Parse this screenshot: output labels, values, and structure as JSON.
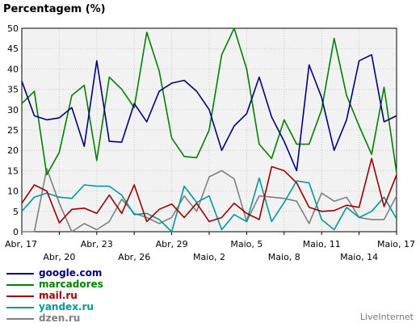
{
  "chart_data": {
    "type": "line",
    "title": "Percentagem (%)",
    "xlabel": "",
    "ylabel": "",
    "ylim": [
      0,
      50
    ],
    "y_ticks": [
      0,
      5,
      10,
      15,
      20,
      25,
      30,
      35,
      40,
      45,
      50
    ],
    "grid": true,
    "legend_position": "bottom-left",
    "x": [
      "Abr, 17",
      "Abr, 18",
      "Abr, 19",
      "Abr, 20",
      "Abr, 21",
      "Abr, 22",
      "Abr, 23",
      "Abr, 24",
      "Abr, 25",
      "Abr, 26",
      "Abr, 27",
      "Abr, 28",
      "Abr, 29",
      "Abr, 30",
      "Maio, 1",
      "Maio, 2",
      "Maio, 3",
      "Maio, 4",
      "Maio, 5",
      "Maio, 6",
      "Maio, 7",
      "Maio, 8",
      "Maio, 9",
      "Maio, 10",
      "Maio, 11",
      "Maio, 12",
      "Maio, 13",
      "Maio, 14",
      "Maio, 15",
      "Maio, 16",
      "Maio, 17"
    ],
    "x_tick_labels_top": [
      {
        "index": 0,
        "label": "Abr, 17"
      },
      {
        "index": 6,
        "label": "Abr, 23"
      },
      {
        "index": 12,
        "label": "Abr, 29"
      },
      {
        "index": 18,
        "label": "Maio, 5"
      },
      {
        "index": 24,
        "label": "Maio, 11"
      },
      {
        "index": 30,
        "label": "Maio, 17"
      }
    ],
    "x_tick_labels_bottom": [
      {
        "index": 3,
        "label": "Abr, 20"
      },
      {
        "index": 9,
        "label": "Abr, 26"
      },
      {
        "index": 15,
        "label": "Maio, 2"
      },
      {
        "index": 21,
        "label": "Maio, 8"
      },
      {
        "index": 27,
        "label": "Maio, 14"
      }
    ],
    "series": [
      {
        "name": "google.com",
        "color": "#00007f",
        "values": [
          37,
          28.5,
          27.5,
          28,
          30.5,
          21,
          42,
          22.2,
          22,
          31.5,
          27,
          34.5,
          36.5,
          37.2,
          34.5,
          30,
          20,
          26,
          29,
          38,
          28.2,
          22.2,
          15,
          41,
          33,
          20,
          27.5,
          42,
          43.5,
          27,
          28.5
        ]
      },
      {
        "name": "marcadores",
        "color": "#008000",
        "values": [
          31.5,
          34.5,
          14,
          19.5,
          33.5,
          36,
          17.5,
          38,
          35,
          30.5,
          49,
          39.5,
          23,
          18.5,
          18.2,
          25,
          43.5,
          50,
          40,
          21.5,
          18,
          27.5,
          21.5,
          21.5,
          30,
          47.5,
          33.5,
          26,
          19,
          35.5,
          14.5
        ]
      },
      {
        "name": "mail.ru",
        "color": "#990000",
        "values": [
          7,
          11.5,
          10,
          2.2,
          5.5,
          5.8,
          4.5,
          9,
          4.5,
          11.5,
          2.5,
          5.5,
          6.8,
          3.5,
          7,
          2.5,
          3.5,
          7,
          4.5,
          3,
          16,
          15,
          12,
          6,
          5,
          5.2,
          6.5,
          6,
          18,
          6.2,
          14
        ]
      },
      {
        "name": "yandex.ru",
        "color": "#009999",
        "values": [
          5,
          8.5,
          9.5,
          8.5,
          8.2,
          11.5,
          11.2,
          11.2,
          9,
          4.2,
          4.5,
          3,
          0,
          11.2,
          7.2,
          8.8,
          0.5,
          4.2,
          2.5,
          13.2,
          2.5,
          7.2,
          12.5,
          12,
          3,
          0.5,
          6,
          3.5,
          5,
          8.5,
          3.2
        ]
      },
      {
        "name": "dzen.ru",
        "color": "#808080",
        "values": [
          0,
          0,
          15.5,
          7,
          0,
          2,
          0.5,
          2.5,
          8,
          4.5,
          3.5,
          2,
          3.5,
          8.8,
          5,
          13.5,
          15,
          13,
          2.5,
          8.8,
          8.5,
          8.2,
          7.5,
          2,
          9.5,
          7.5,
          8.5,
          3.5,
          3,
          3,
          8.8
        ]
      }
    ]
  },
  "branding": "LiveInternet"
}
